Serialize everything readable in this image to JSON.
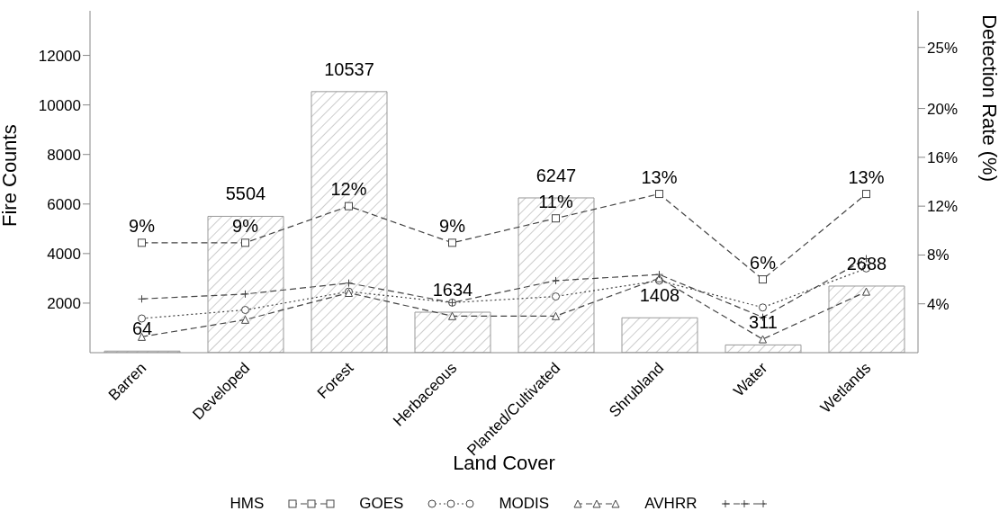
{
  "chart_data": {
    "type": "bar",
    "xlabel": "Land Cover",
    "ylabel": "Fire Counts",
    "y2label": "Detection Rate (%)",
    "categories": [
      "Barren",
      "Developed",
      "Forest",
      "Herbaceous",
      "Planted/Cultivated",
      "Shrubland",
      "Water",
      "Wetlands"
    ],
    "values": [
      64,
      5504,
      10537,
      1634,
      6247,
      1408,
      311,
      2688
    ],
    "color": "#999999",
    "value_labels": [
      "64",
      "5504",
      "10537",
      "1634",
      "6247",
      "1408",
      "311",
      "2688"
    ],
    "ylim": [
      0,
      13800
    ],
    "yticks": [
      2000,
      4000,
      6000,
      8000,
      10000,
      12000
    ],
    "y2lim": [
      0,
      28
    ],
    "y2ticks": [
      {
        "value": 4,
        "label": "4%"
      },
      {
        "value": 8,
        "label": "8%"
      },
      {
        "value": 12,
        "label": "12%"
      },
      {
        "value": 16,
        "label": "16%"
      },
      {
        "value": 20,
        "label": "20%"
      },
      {
        "value": 25,
        "label": "25%"
      }
    ],
    "series": [
      {
        "name": "HMS",
        "type": "line",
        "axis": "y2",
        "color": "#444444",
        "marker": "square",
        "line_style": "dashed",
        "values": [
          9,
          9,
          12,
          9,
          11,
          13,
          6,
          13
        ],
        "value_labels": [
          "9%",
          "9%",
          "12%",
          "9%",
          "11%",
          "13%",
          "6%",
          "13%"
        ]
      },
      {
        "name": "GOES",
        "type": "line",
        "axis": "y2",
        "color": "#444444",
        "marker": "circle",
        "line_style": "dotted",
        "values": [
          2.8,
          3.5,
          5.0,
          4.1,
          4.6,
          5.9,
          3.7,
          6.9
        ]
      },
      {
        "name": "MODIS",
        "type": "line",
        "axis": "y2",
        "color": "#444444",
        "marker": "triangle",
        "line_style": "dashed",
        "values": [
          1.3,
          2.7,
          4.9,
          3.0,
          3.0,
          6.1,
          1.1,
          5.0
        ]
      },
      {
        "name": "AVHRR",
        "type": "line",
        "axis": "y2",
        "color": "#444444",
        "marker": "cross",
        "line_style": "dashed",
        "values": [
          4.4,
          4.8,
          5.7,
          4.1,
          5.9,
          6.4,
          2.9,
          7.7
        ]
      }
    ],
    "legend": "bottom",
    "grid": false
  }
}
